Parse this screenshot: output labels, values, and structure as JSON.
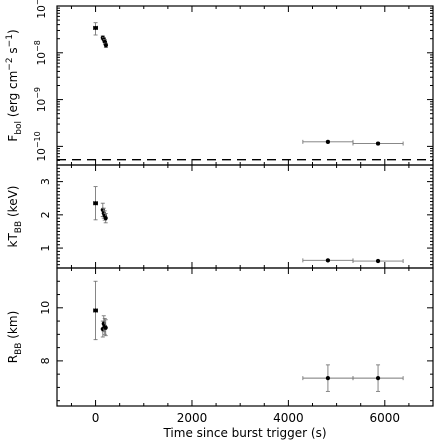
{
  "chart_data": [
    {
      "type": "scatter",
      "panel": "flux",
      "ylabel": "F_bol (erg cm^-2 s^-1)",
      "ylabel_main": "F",
      "ylabel_sub": "bol",
      "ylabel_rest": " (erg cm",
      "ylabel_exp1": "−2",
      "ylabel_mid": " s",
      "ylabel_exp2": "−1",
      "ylabel_end": ")",
      "yscale": "log",
      "ylim": [
        4e-11,
        1e-07
      ],
      "yticks": [
        1e-10,
        1e-09,
        1e-08,
        1e-07
      ],
      "yticklabels": [
        {
          "base": "10",
          "exp": "−10"
        },
        {
          "base": "10",
          "exp": "−9"
        },
        {
          "base": "10",
          "exp": "−8"
        },
        {
          "base": "10",
          "exp": "−7"
        }
      ],
      "persistent_level": 5.2e-11,
      "points": [
        {
          "x": 0,
          "xerr": 40,
          "y": 3.4e-08,
          "ylo": 2.4e-08,
          "yhi": 4.4e-08
        },
        {
          "x": 150,
          "xerr": 10,
          "y": 2.1e-08,
          "ylo": 1.9e-08,
          "yhi": 2.3e-08
        },
        {
          "x": 175,
          "xerr": 10,
          "y": 1.9e-08,
          "ylo": 1.7e-08,
          "yhi": 2.1e-08
        },
        {
          "x": 195,
          "xerr": 10,
          "y": 1.7e-08,
          "ylo": 1.5e-08,
          "yhi": 1.9e-08
        },
        {
          "x": 215,
          "xerr": 10,
          "y": 1.45e-08,
          "ylo": 1.3e-08,
          "yhi": 1.6e-08
        },
        {
          "x": 4820,
          "xerr": 520,
          "y": 1.25e-10,
          "ylo": 1.18e-10,
          "yhi": 1.32e-10
        },
        {
          "x": 5860,
          "xerr": 520,
          "y": 1.15e-10,
          "ylo": 1.08e-10,
          "yhi": 1.22e-10
        }
      ]
    },
    {
      "type": "scatter",
      "panel": "temperature",
      "ylabel": "kT_BB (keV)",
      "ylabel_main": "kT",
      "ylabel_sub": "BB",
      "ylabel_rest": " (keV)",
      "yscale": "linear",
      "ylim": [
        0.4,
        3.5
      ],
      "yticks": [
        1,
        2,
        3
      ],
      "yticklabels": [
        "1",
        "2",
        "3"
      ],
      "points": [
        {
          "x": 0,
          "xerr": 40,
          "y": 2.35,
          "ylo": 1.85,
          "yhi": 2.85
        },
        {
          "x": 150,
          "xerr": 10,
          "y": 2.15,
          "ylo": 1.95,
          "yhi": 2.35
        },
        {
          "x": 170,
          "xerr": 10,
          "y": 2.05,
          "ylo": 1.9,
          "yhi": 2.2
        },
        {
          "x": 190,
          "xerr": 10,
          "y": 1.98,
          "ylo": 1.84,
          "yhi": 2.12
        },
        {
          "x": 210,
          "xerr": 10,
          "y": 1.9,
          "ylo": 1.76,
          "yhi": 2.04
        },
        {
          "x": 4820,
          "xerr": 520,
          "y": 0.63,
          "ylo": 0.6,
          "yhi": 0.66
        },
        {
          "x": 5860,
          "xerr": 520,
          "y": 0.61,
          "ylo": 0.58,
          "yhi": 0.64
        }
      ]
    },
    {
      "type": "scatter",
      "panel": "radius",
      "ylabel": "R_BB (km)",
      "ylabel_main": "R",
      "ylabel_sub": "BB",
      "ylabel_rest": " (km)",
      "yscale": "linear",
      "ylim": [
        6.3,
        11.5
      ],
      "yticks": [
        8,
        10
      ],
      "yticklabels": [
        "8",
        "10"
      ],
      "points": [
        {
          "x": 0,
          "xerr": 40,
          "y": 9.9,
          "ylo": 8.8,
          "yhi": 11.0
        },
        {
          "x": 150,
          "xerr": 10,
          "y": 9.2,
          "ylo": 8.9,
          "yhi": 9.5
        },
        {
          "x": 170,
          "xerr": 10,
          "y": 9.4,
          "ylo": 9.1,
          "yhi": 9.7
        },
        {
          "x": 190,
          "xerr": 10,
          "y": 9.3,
          "ylo": 9.0,
          "yhi": 9.6
        },
        {
          "x": 210,
          "xerr": 10,
          "y": 9.25,
          "ylo": 8.95,
          "yhi": 9.55
        },
        {
          "x": 4820,
          "xerr": 520,
          "y": 7.35,
          "ylo": 6.85,
          "yhi": 7.85
        },
        {
          "x": 5860,
          "xerr": 520,
          "y": 7.35,
          "ylo": 6.85,
          "yhi": 7.85
        }
      ]
    }
  ],
  "xaxis": {
    "label": "Time since burst trigger (s)",
    "xlim": [
      -800,
      7000
    ],
    "ticks": [
      0,
      2000,
      4000,
      6000
    ],
    "ticklabels": [
      "0",
      "2000",
      "4000",
      "6000"
    ]
  }
}
